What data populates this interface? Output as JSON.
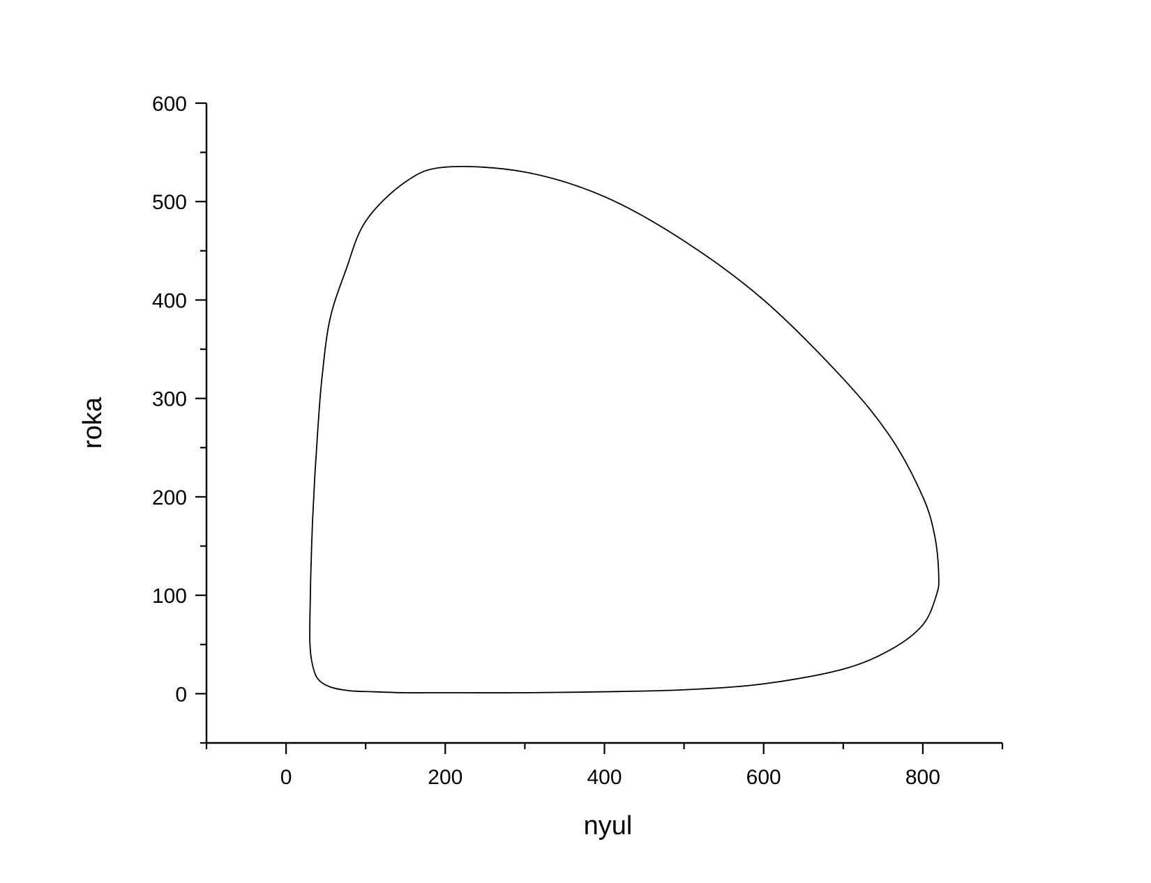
{
  "chart_data": {
    "type": "line",
    "title": "",
    "xlabel": "nyul",
    "ylabel": "roka",
    "xlim": [
      -100,
      900
    ],
    "ylim": [
      -50,
      600
    ],
    "x_ticks_major": [
      0,
      200,
      400,
      600,
      800
    ],
    "x_tick_labels": [
      "0",
      "200",
      "400",
      "600",
      "800"
    ],
    "x_ticks_minor": [
      -100,
      100,
      300,
      500,
      700,
      900
    ],
    "y_ticks_major": [
      0,
      100,
      200,
      300,
      400,
      500,
      600
    ],
    "y_tick_labels": [
      "0",
      "100",
      "200",
      "300",
      "400",
      "500",
      "600"
    ],
    "y_ticks_minor": [
      -50,
      50,
      150,
      250,
      350,
      450,
      550
    ],
    "grid": false,
    "legend": "none",
    "line_color": "#000000",
    "series": [
      {
        "x": [
          30,
          33,
          40,
          55,
          80,
          110,
          150,
          200,
          300,
          400,
          500,
          600,
          700,
          760,
          800,
          817,
          820,
          815,
          800,
          760,
          700,
          600,
          500,
          400,
          300,
          200,
          150,
          100,
          75,
          55,
          45,
          40,
          36,
          33,
          31,
          30,
          30
        ],
        "y": [
          50,
          30,
          15,
          7,
          3,
          2,
          1,
          1,
          1,
          2,
          4,
          10,
          25,
          45,
          70,
          100,
          120,
          160,
          200,
          260,
          320,
          400,
          460,
          505,
          530,
          535,
          520,
          480,
          430,
          380,
          320,
          270,
          220,
          170,
          120,
          80,
          50
        ]
      }
    ]
  }
}
